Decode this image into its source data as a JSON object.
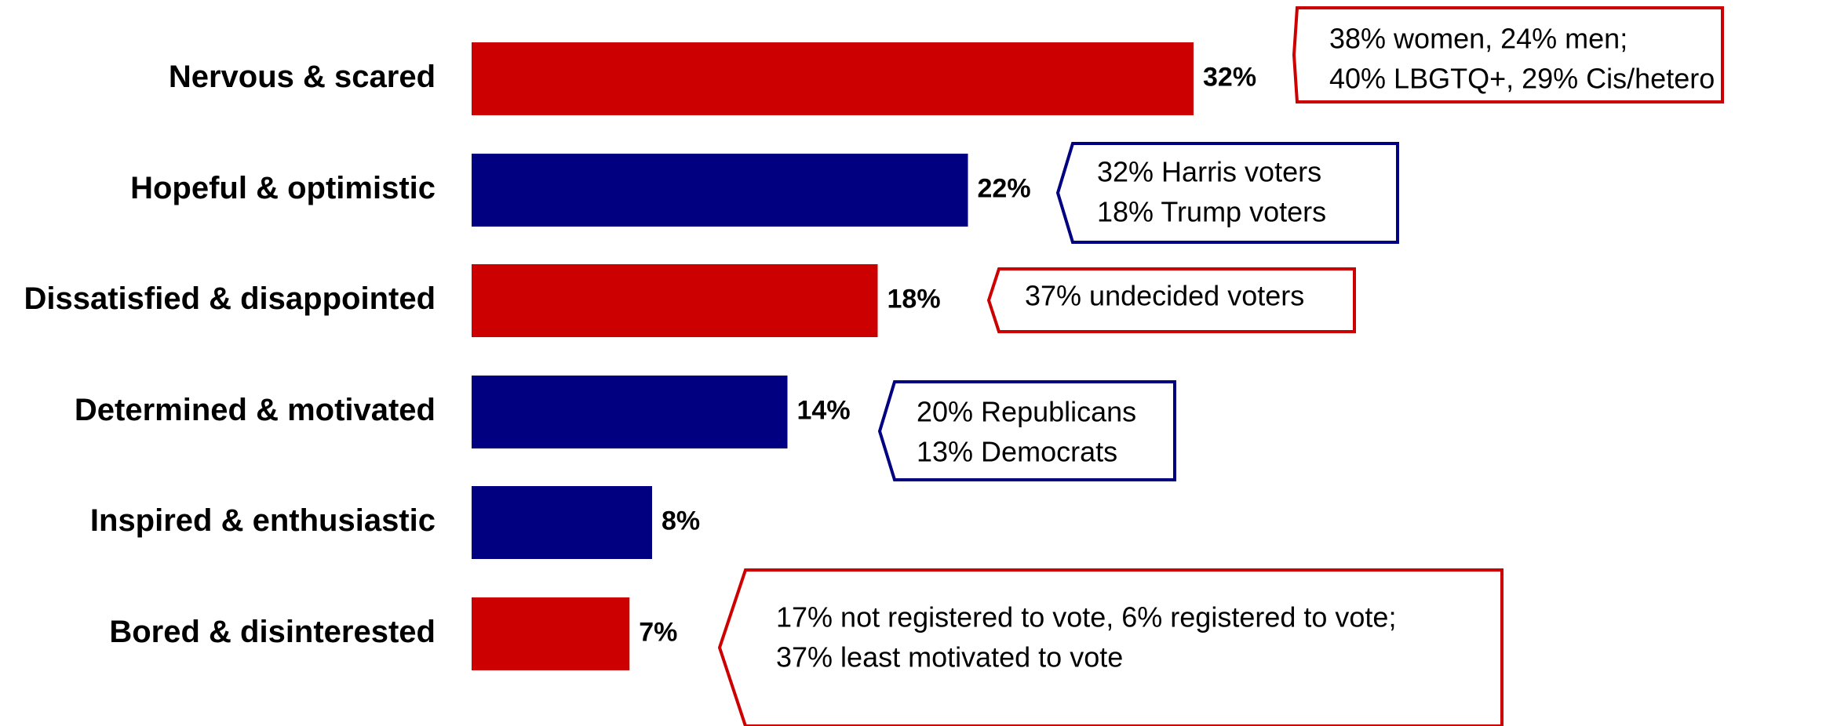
{
  "chart_data": {
    "type": "bar",
    "orientation": "horizontal",
    "categories": [
      "Nervous & scared",
      "Hopeful & optimistic",
      "Dissatisfied & disappointed",
      "Determined & motivated",
      "Inspired & enthusiastic",
      "Bored & disinterested"
    ],
    "values": [
      32,
      22,
      18,
      14,
      8,
      7
    ],
    "value_labels": [
      "32%",
      "22%",
      "18%",
      "14%",
      "8%",
      "7%"
    ],
    "bar_colors": [
      "#cc0000",
      "#000080",
      "#cc0000",
      "#000080",
      "#000080",
      "#cc0000"
    ],
    "annotations": [
      {
        "lines": [
          "38% women, 24% men;",
          "40% LBGTQ+, 29% Cis/hetero"
        ],
        "color": "#cc0000"
      },
      {
        "lines": [
          "32% Harris voters",
          "18% Trump voters"
        ],
        "color": "#000080"
      },
      {
        "lines": [
          "37% undecided voters"
        ],
        "color": "#cc0000"
      },
      {
        "lines": [
          "20% Republicans",
          "13% Democrats"
        ],
        "color": "#000080"
      },
      {
        "lines": [
          "17% not registered to vote, 6% registered to vote;",
          "37% least motivated to vote"
        ],
        "color": "#cc0000"
      }
    ],
    "grid": false,
    "legend": "none"
  }
}
